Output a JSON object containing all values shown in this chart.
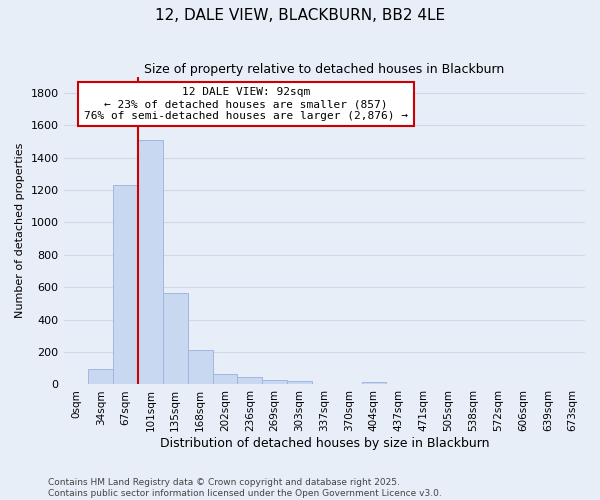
{
  "title": "12, DALE VIEW, BLACKBURN, BB2 4LE",
  "subtitle": "Size of property relative to detached houses in Blackburn",
  "xlabel": "Distribution of detached houses by size in Blackburn",
  "ylabel": "Number of detached properties",
  "bar_labels": [
    "0sqm",
    "34sqm",
    "67sqm",
    "101sqm",
    "135sqm",
    "168sqm",
    "202sqm",
    "236sqm",
    "269sqm",
    "303sqm",
    "337sqm",
    "370sqm",
    "404sqm",
    "437sqm",
    "471sqm",
    "505sqm",
    "538sqm",
    "572sqm",
    "606sqm",
    "639sqm",
    "673sqm"
  ],
  "bar_values": [
    0,
    95,
    1230,
    1510,
    565,
    210,
    65,
    47,
    30,
    20,
    0,
    0,
    15,
    0,
    0,
    0,
    0,
    0,
    0,
    0,
    0
  ],
  "bar_color": "#c8d8f0",
  "bar_edge_color": "#a0b8e0",
  "property_line_color": "#cc0000",
  "ylim": [
    0,
    1900
  ],
  "yticks": [
    0,
    200,
    400,
    600,
    800,
    1000,
    1200,
    1400,
    1600,
    1800
  ],
  "annotation_title": "12 DALE VIEW: 92sqm",
  "annotation_line1": "← 23% of detached houses are smaller (857)",
  "annotation_line2": "76% of semi-detached houses are larger (2,876) →",
  "annotation_box_color": "#ffffff",
  "annotation_box_edge": "#cc0000",
  "grid_color": "#d0d8e8",
  "bg_color": "#e8eef8",
  "footer_line1": "Contains HM Land Registry data © Crown copyright and database right 2025.",
  "footer_line2": "Contains public sector information licensed under the Open Government Licence v3.0."
}
